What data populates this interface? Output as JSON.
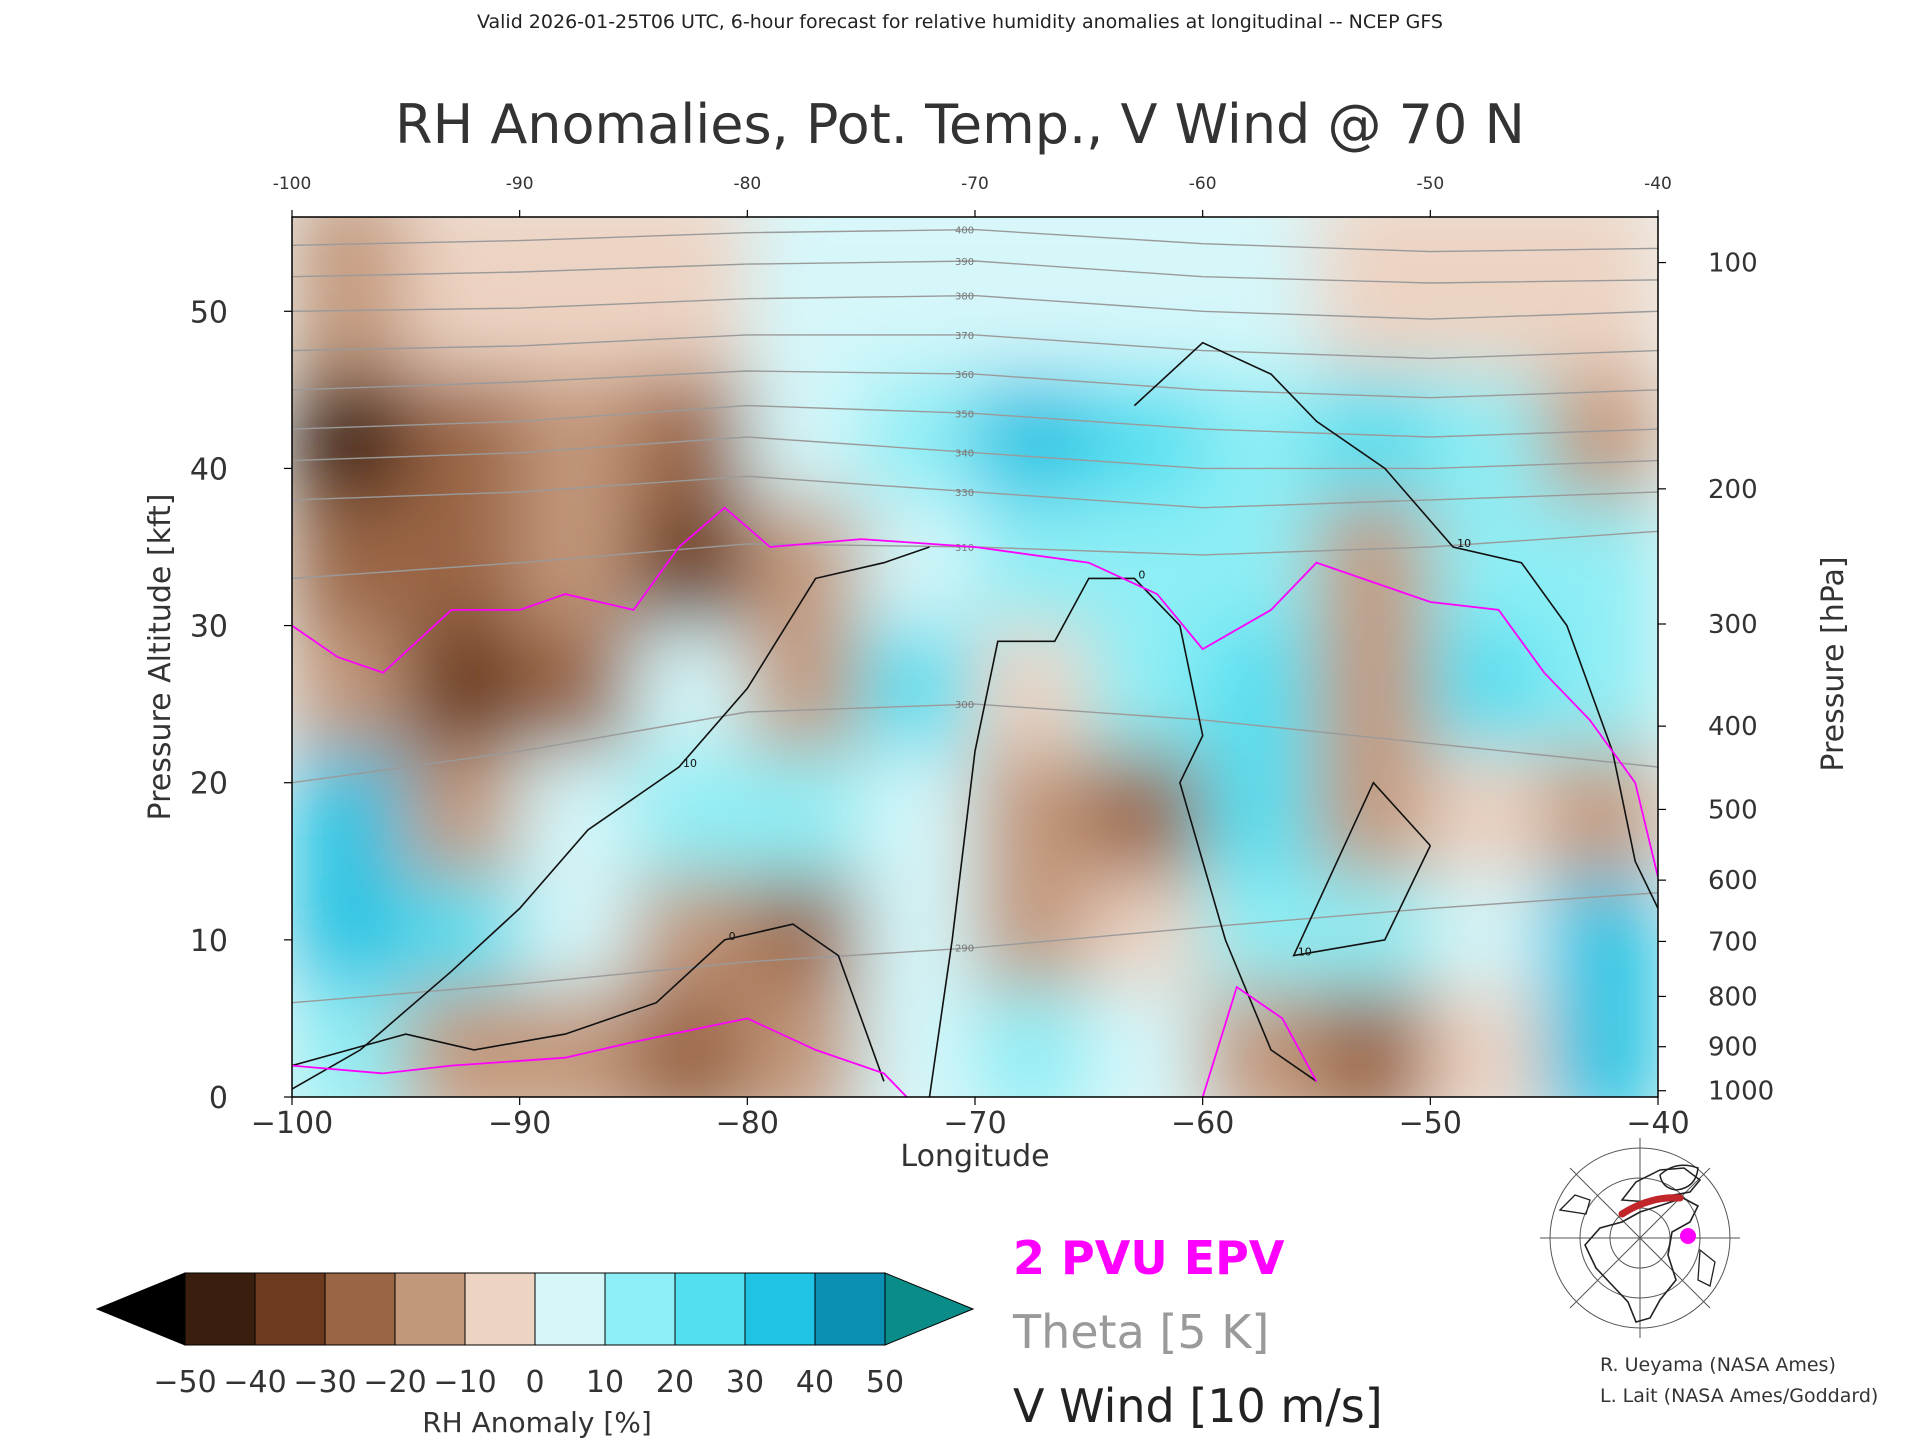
{
  "header": {
    "valid_line": "Valid 2026-01-25T06 UTC, 6-hour forecast for relative humidity anomalies at longitudinal -- NCEP GFS",
    "title": "RH Anomalies, Pot. Temp., V Wind @ 70 N"
  },
  "chart_data": {
    "type": "heatmap",
    "title": "RH Anomalies, Pot. Temp., V Wind @ 70 N",
    "xlabel": "Longitude",
    "ylabel": "Pressure Altitude [kft]",
    "y2label": "Pressure [hPa]",
    "xlim": [
      -100,
      -40
    ],
    "ylim": [
      0,
      56
    ],
    "x_ticks": [
      -100,
      -90,
      -80,
      -70,
      -60,
      -50,
      -40
    ],
    "x_tick_labels": [
      "−100",
      "−90",
      "−80",
      "−70",
      "−60",
      "−50",
      "−40"
    ],
    "x_top_tick_labels": [
      "-100",
      "-90",
      "-80",
      "-70",
      "-60",
      "-50",
      "-40"
    ],
    "y_ticks": [
      0,
      10,
      20,
      30,
      40,
      50
    ],
    "y_tick_labels": [
      "0",
      "10",
      "20",
      "30",
      "40",
      "50"
    ],
    "pressure_ticks": [
      {
        "hpa": 100,
        "kft": 53.1,
        "label": "100"
      },
      {
        "hpa": 200,
        "kft": 38.7,
        "label": "200"
      },
      {
        "hpa": 300,
        "kft": 30.1,
        "label": "300"
      },
      {
        "hpa": 400,
        "kft": 23.6,
        "label": "400"
      },
      {
        "hpa": 500,
        "kft": 18.3,
        "label": "500"
      },
      {
        "hpa": 600,
        "kft": 13.8,
        "label": "600"
      },
      {
        "hpa": 700,
        "kft": 9.9,
        "label": "700"
      },
      {
        "hpa": 800,
        "kft": 6.4,
        "label": "800"
      },
      {
        "hpa": 900,
        "kft": 3.2,
        "label": "900"
      },
      {
        "hpa": 1000,
        "kft": 0.4,
        "label": "1000"
      }
    ],
    "rh_anomaly_cells": [
      {
        "x": -100,
        "y": 48,
        "v": -12
      },
      {
        "x": -95,
        "y": 48,
        "v": -10
      },
      {
        "x": -90,
        "y": 48,
        "v": -6
      },
      {
        "x": -85,
        "y": 48,
        "v": -4
      },
      {
        "x": -80,
        "y": 48,
        "v": 0
      },
      {
        "x": -75,
        "y": 48,
        "v": 3
      },
      {
        "x": -70,
        "y": 48,
        "v": 4
      },
      {
        "x": -65,
        "y": 48,
        "v": 2
      },
      {
        "x": -60,
        "y": 48,
        "v": 0
      },
      {
        "x": -55,
        "y": 48,
        "v": -2
      },
      {
        "x": -50,
        "y": 48,
        "v": -4
      },
      {
        "x": -45,
        "y": 48,
        "v": -6
      },
      {
        "x": -100,
        "y": 40,
        "v": -42
      },
      {
        "x": -95,
        "y": 40,
        "v": -28
      },
      {
        "x": -90,
        "y": 40,
        "v": -18
      },
      {
        "x": -85,
        "y": 40,
        "v": -22
      },
      {
        "x": -80,
        "y": 40,
        "v": 6
      },
      {
        "x": -75,
        "y": 40,
        "v": 18
      },
      {
        "x": -70,
        "y": 40,
        "v": 38
      },
      {
        "x": -65,
        "y": 40,
        "v": 22
      },
      {
        "x": -60,
        "y": 40,
        "v": 12
      },
      {
        "x": -55,
        "y": 40,
        "v": 28
      },
      {
        "x": -50,
        "y": 40,
        "v": 14
      },
      {
        "x": -45,
        "y": 40,
        "v": -14
      },
      {
        "x": -100,
        "y": 32,
        "v": -30
      },
      {
        "x": -95,
        "y": 32,
        "v": -25
      },
      {
        "x": -90,
        "y": 32,
        "v": -20
      },
      {
        "x": -85,
        "y": 32,
        "v": -32
      },
      {
        "x": -80,
        "y": 32,
        "v": -14
      },
      {
        "x": -75,
        "y": 32,
        "v": 8
      },
      {
        "x": -70,
        "y": 32,
        "v": 18
      },
      {
        "x": -65,
        "y": 32,
        "v": 12
      },
      {
        "x": -60,
        "y": 32,
        "v": 10
      },
      {
        "x": -55,
        "y": 32,
        "v": -12
      },
      {
        "x": -50,
        "y": 32,
        "v": 16
      },
      {
        "x": -45,
        "y": 32,
        "v": 10
      },
      {
        "x": -100,
        "y": 24,
        "v": -12
      },
      {
        "x": -95,
        "y": 24,
        "v": -36
      },
      {
        "x": -90,
        "y": 24,
        "v": -26
      },
      {
        "x": -85,
        "y": 24,
        "v": 6
      },
      {
        "x": -80,
        "y": 24,
        "v": -16
      },
      {
        "x": -75,
        "y": 24,
        "v": 20
      },
      {
        "x": -70,
        "y": 24,
        "v": -6
      },
      {
        "x": -65,
        "y": 24,
        "v": 18
      },
      {
        "x": -60,
        "y": 24,
        "v": 26
      },
      {
        "x": -55,
        "y": 24,
        "v": -16
      },
      {
        "x": -50,
        "y": 24,
        "v": 22
      },
      {
        "x": -45,
        "y": 24,
        "v": 10
      },
      {
        "x": -100,
        "y": 16,
        "v": 30
      },
      {
        "x": -95,
        "y": 16,
        "v": -20
      },
      {
        "x": -90,
        "y": 16,
        "v": 8
      },
      {
        "x": -85,
        "y": 16,
        "v": 18
      },
      {
        "x": -80,
        "y": 16,
        "v": 12
      },
      {
        "x": -75,
        "y": 16,
        "v": 8
      },
      {
        "x": -70,
        "y": 16,
        "v": -18
      },
      {
        "x": -65,
        "y": 16,
        "v": -30
      },
      {
        "x": -60,
        "y": 16,
        "v": 20
      },
      {
        "x": -55,
        "y": 16,
        "v": -20
      },
      {
        "x": -50,
        "y": 16,
        "v": -10
      },
      {
        "x": -45,
        "y": 16,
        "v": -20
      },
      {
        "x": -100,
        "y": 8,
        "v": 38
      },
      {
        "x": -95,
        "y": 8,
        "v": 20
      },
      {
        "x": -90,
        "y": 8,
        "v": 6
      },
      {
        "x": -85,
        "y": 8,
        "v": -20
      },
      {
        "x": -80,
        "y": 8,
        "v": -24
      },
      {
        "x": -75,
        "y": 8,
        "v": 4
      },
      {
        "x": -70,
        "y": 8,
        "v": -16
      },
      {
        "x": -65,
        "y": 8,
        "v": -6
      },
      {
        "x": -60,
        "y": 8,
        "v": 14
      },
      {
        "x": -55,
        "y": 8,
        "v": 10
      },
      {
        "x": -50,
        "y": 8,
        "v": 6
      },
      {
        "x": -45,
        "y": 8,
        "v": 34
      },
      {
        "x": -100,
        "y": 2,
        "v": 10
      },
      {
        "x": -95,
        "y": 2,
        "v": -14
      },
      {
        "x": -90,
        "y": 2,
        "v": -16
      },
      {
        "x": -85,
        "y": 2,
        "v": -24
      },
      {
        "x": -80,
        "y": 2,
        "v": -16
      },
      {
        "x": -75,
        "y": 2,
        "v": 4
      },
      {
        "x": -70,
        "y": 2,
        "v": 12
      },
      {
        "x": -65,
        "y": 2,
        "v": 6
      },
      {
        "x": -60,
        "y": 2,
        "v": -18
      },
      {
        "x": -55,
        "y": 2,
        "v": -22
      },
      {
        "x": -50,
        "y": 2,
        "v": -6
      },
      {
        "x": -45,
        "y": 2,
        "v": 30
      }
    ],
    "theta_isentropes": [
      {
        "label": "290",
        "points": [
          [
            -100,
            6
          ],
          [
            -90,
            7.2
          ],
          [
            -80,
            8.6
          ],
          [
            -70,
            9.5
          ],
          [
            -60,
            10.8
          ],
          [
            -50,
            12
          ],
          [
            -40,
            13
          ]
        ]
      },
      {
        "label": "300",
        "points": [
          [
            -100,
            20
          ],
          [
            -90,
            22
          ],
          [
            -80,
            24.5
          ],
          [
            -70,
            25
          ],
          [
            -60,
            24
          ],
          [
            -50,
            22.5
          ],
          [
            -40,
            21
          ]
        ]
      },
      {
        "label": "310",
        "points": [
          [
            -100,
            33
          ],
          [
            -90,
            34
          ],
          [
            -80,
            35.2
          ],
          [
            -70,
            35
          ],
          [
            -60,
            34.5
          ],
          [
            -50,
            35
          ],
          [
            -40,
            36
          ]
        ]
      },
      {
        "label": "330",
        "points": [
          [
            -100,
            38
          ],
          [
            -90,
            38.5
          ],
          [
            -80,
            39.5
          ],
          [
            -70,
            38.5
          ],
          [
            -60,
            37.5
          ],
          [
            -50,
            38
          ],
          [
            -40,
            38.5
          ]
        ]
      },
      {
        "label": "340",
        "points": [
          [
            -100,
            40.5
          ],
          [
            -90,
            41
          ],
          [
            -80,
            42
          ],
          [
            -70,
            41
          ],
          [
            -60,
            40
          ],
          [
            -50,
            40
          ],
          [
            -40,
            40.5
          ]
        ]
      },
      {
        "label": "350",
        "points": [
          [
            -100,
            42.5
          ],
          [
            -90,
            43
          ],
          [
            -80,
            44
          ],
          [
            -70,
            43.5
          ],
          [
            -60,
            42.5
          ],
          [
            -50,
            42
          ],
          [
            -40,
            42.5
          ]
        ]
      },
      {
        "label": "360",
        "points": [
          [
            -100,
            45
          ],
          [
            -90,
            45.5
          ],
          [
            -80,
            46.2
          ],
          [
            -70,
            46
          ],
          [
            -60,
            45
          ],
          [
            -50,
            44.5
          ],
          [
            -40,
            45
          ]
        ]
      },
      {
        "label": "370",
        "points": [
          [
            -100,
            47.5
          ],
          [
            -90,
            47.8
          ],
          [
            -80,
            48.5
          ],
          [
            -70,
            48.5
          ],
          [
            -60,
            47.5
          ],
          [
            -50,
            47
          ],
          [
            -40,
            47.5
          ]
        ]
      },
      {
        "label": "380",
        "points": [
          [
            -100,
            50
          ],
          [
            -90,
            50.2
          ],
          [
            -80,
            50.8
          ],
          [
            -70,
            51
          ],
          [
            -60,
            50
          ],
          [
            -50,
            49.5
          ],
          [
            -40,
            50
          ]
        ]
      },
      {
        "label": "390",
        "points": [
          [
            -100,
            52.2
          ],
          [
            -90,
            52.5
          ],
          [
            -80,
            53
          ],
          [
            -70,
            53.2
          ],
          [
            -60,
            52.2
          ],
          [
            -50,
            51.8
          ],
          [
            -40,
            52
          ]
        ]
      },
      {
        "label": "400",
        "points": [
          [
            -100,
            54.2
          ],
          [
            -90,
            54.5
          ],
          [
            -80,
            55
          ],
          [
            -70,
            55.2
          ],
          [
            -60,
            54.3
          ],
          [
            -50,
            53.8
          ],
          [
            -40,
            54
          ]
        ]
      }
    ],
    "v_wind_contours": [
      {
        "label": "10",
        "points": [
          [
            -100,
            0.5
          ],
          [
            -97,
            3
          ],
          [
            -93,
            8
          ],
          [
            -90,
            12
          ],
          [
            -87,
            17
          ],
          [
            -83,
            21
          ],
          [
            -80,
            26
          ],
          [
            -77,
            33
          ],
          [
            -74,
            34
          ],
          [
            -72,
            35
          ]
        ]
      },
      {
        "label": "0",
        "points": [
          [
            -100,
            2
          ],
          [
            -95,
            4
          ],
          [
            -92,
            3
          ],
          [
            -88,
            4
          ],
          [
            -84,
            6
          ],
          [
            -81,
            10
          ],
          [
            -78,
            11
          ],
          [
            -76,
            9
          ],
          [
            -75,
            5
          ],
          [
            -74,
            1
          ]
        ]
      },
      {
        "label": "0",
        "points": [
          [
            -72,
            0
          ],
          [
            -71,
            10
          ],
          [
            -70,
            22
          ],
          [
            -69,
            29
          ],
          [
            -66.5,
            29
          ],
          [
            -65,
            33
          ],
          [
            -63,
            33
          ],
          [
            -61,
            30
          ],
          [
            -60,
            23
          ],
          [
            -61,
            20
          ],
          [
            -59,
            10
          ],
          [
            -57,
            3
          ],
          [
            -55,
            1
          ]
        ]
      },
      {
        "label": "10",
        "points": [
          [
            -63,
            44
          ],
          [
            -60,
            48
          ],
          [
            -57,
            46
          ],
          [
            -55,
            43
          ],
          [
            -52,
            40
          ],
          [
            -49,
            35
          ],
          [
            -46,
            34
          ],
          [
            -44,
            30
          ],
          [
            -42,
            22
          ],
          [
            -41,
            15
          ],
          [
            -40,
            12
          ]
        ]
      },
      {
        "label": "10",
        "points": [
          [
            -50,
            16
          ],
          [
            -52.5,
            20
          ],
          [
            -56,
            9
          ],
          [
            -52,
            10
          ],
          [
            -50,
            16
          ]
        ]
      }
    ],
    "epv_2pvu_contours": [
      {
        "label": "2 PVU",
        "points": [
          [
            -100,
            30
          ],
          [
            -98,
            28
          ],
          [
            -96,
            27
          ],
          [
            -93,
            31
          ],
          [
            -90,
            31
          ],
          [
            -88,
            32
          ],
          [
            -85,
            31
          ],
          [
            -83,
            35
          ],
          [
            -81,
            37.5
          ],
          [
            -79,
            35
          ],
          [
            -75,
            35.5
          ],
          [
            -70,
            35
          ],
          [
            -65,
            34
          ],
          [
            -62,
            32
          ],
          [
            -60,
            28.5
          ],
          [
            -57,
            31
          ],
          [
            -55,
            34
          ],
          [
            -53,
            33
          ],
          [
            -50,
            31.5
          ],
          [
            -47,
            31
          ],
          [
            -45,
            27
          ],
          [
            -43,
            24
          ],
          [
            -41,
            20
          ],
          [
            -40,
            14
          ]
        ]
      },
      {
        "label": "2 PVU",
        "points": [
          [
            -100,
            2
          ],
          [
            -96,
            1.5
          ],
          [
            -93,
            2
          ],
          [
            -88,
            2.5
          ],
          [
            -85,
            3.5
          ],
          [
            -80,
            5
          ],
          [
            -77,
            3
          ],
          [
            -74,
            1.5
          ],
          [
            -73,
            0
          ]
        ]
      },
      {
        "label": "2 PVU",
        "points": [
          [
            -60,
            0
          ],
          [
            -58.5,
            7
          ],
          [
            -56.5,
            5
          ],
          [
            -55,
            1
          ]
        ]
      }
    ],
    "colorbar": {
      "label": "RH Anomaly [%]",
      "tick_labels": [
        "−50",
        "−40",
        "−30",
        "−20",
        "−10",
        "0",
        "10",
        "20",
        "30",
        "40",
        "50"
      ],
      "bins": [
        {
          "value": -45,
          "color": "#3b1f0e"
        },
        {
          "value": -35,
          "color": "#6b3a1f"
        },
        {
          "value": -25,
          "color": "#9a6545"
        },
        {
          "value": -15,
          "color": "#c3977a"
        },
        {
          "value": -5,
          "color": "#edd3c2"
        },
        {
          "value": 5,
          "color": "#d5f7fa"
        },
        {
          "value": 15,
          "color": "#8eeef5"
        },
        {
          "value": 25,
          "color": "#52dff0"
        },
        {
          "value": 35,
          "color": "#20c3e3"
        },
        {
          "value": 45,
          "color": "#0b8fb3"
        }
      ],
      "under_color": "#000000",
      "over_color": "#0a8c88"
    }
  },
  "legend": {
    "epv_label": "2 PVU EPV",
    "theta_label": "Theta [5 K]",
    "vwind_label": "V Wind [10 m/s]"
  },
  "credits": {
    "line1": "R. Ueyama (NASA Ames)",
    "line2": "L. Lait (NASA Ames/Goddard)"
  },
  "colors": {
    "epv": "#ff00ff",
    "theta": "#9a9a9a",
    "vwind": "#111111"
  },
  "icons": {
    "locator_map": "polar-locator-map-icon"
  }
}
